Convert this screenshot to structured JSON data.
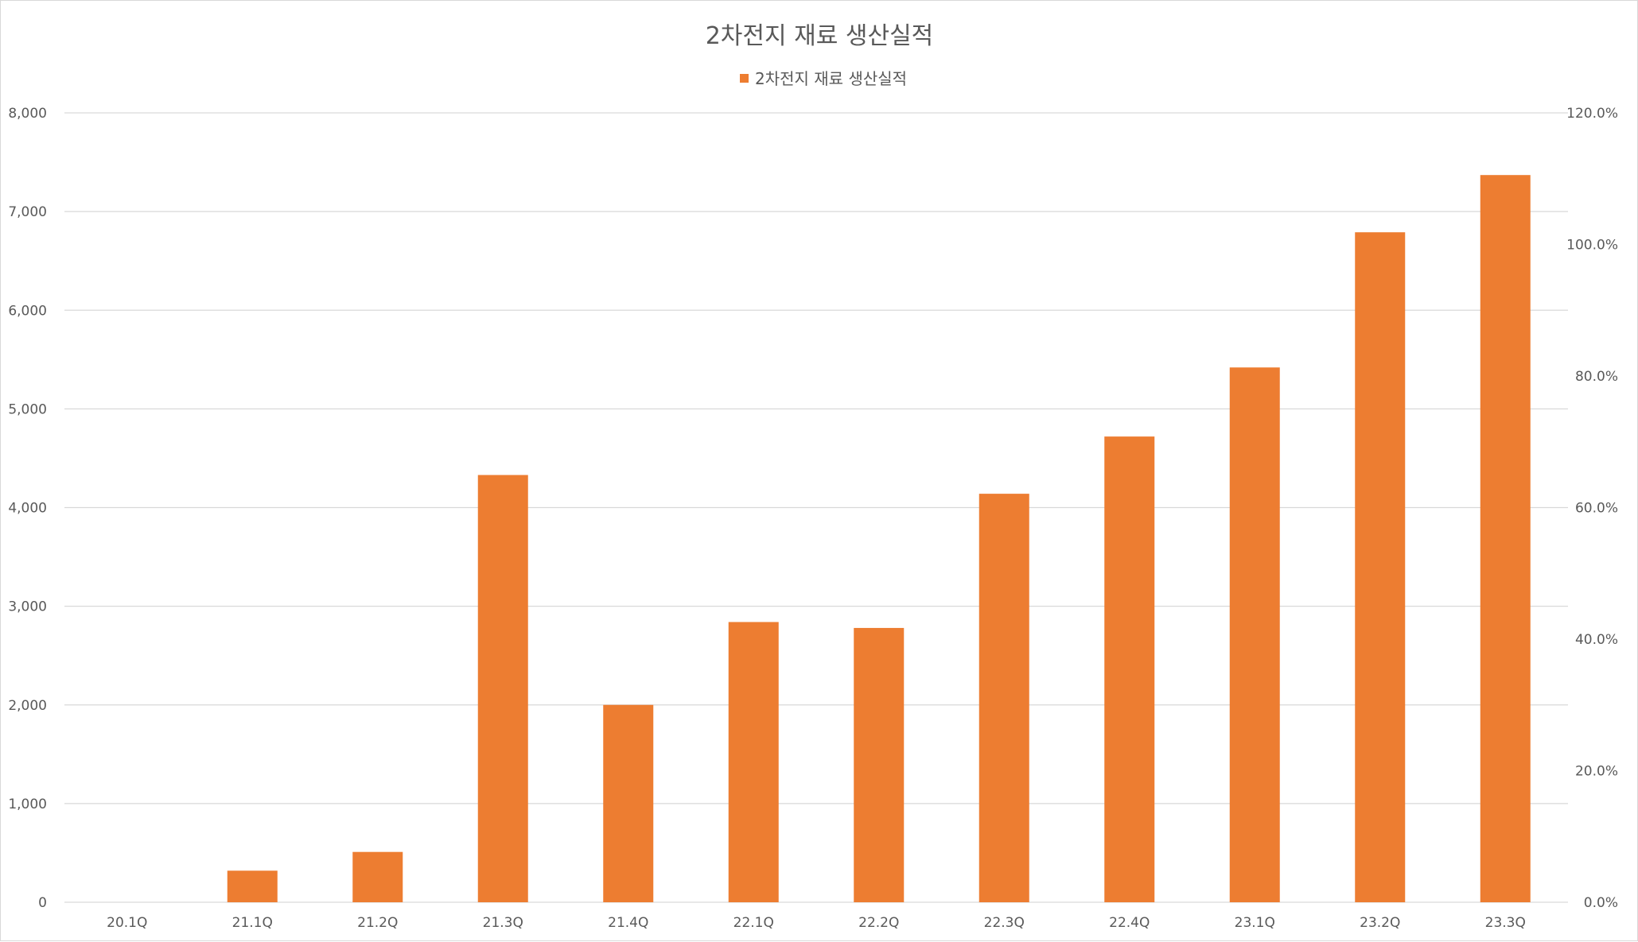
{
  "chart_data": {
    "type": "bar",
    "title": "2차전지 재료 생산실적",
    "legend": {
      "position": "top",
      "entries": [
        "2차전지 재료 생산실적"
      ]
    },
    "categories": [
      "20.1Q",
      "21.1Q",
      "21.2Q",
      "21.3Q",
      "21.4Q",
      "22.1Q",
      "22.2Q",
      "22.3Q",
      "22.4Q",
      "23.1Q",
      "23.2Q",
      "23.3Q"
    ],
    "series": [
      {
        "name": "2차전지 재료 생산실적",
        "color": "#ED7D31",
        "values": [
          0,
          320,
          510,
          4330,
          2000,
          2840,
          2780,
          4140,
          4720,
          5420,
          6790,
          7370
        ]
      }
    ],
    "ylim": [
      0,
      8000
    ],
    "yticks": [
      0,
      1000,
      2000,
      3000,
      4000,
      5000,
      6000,
      7000,
      8000
    ],
    "ytick_labels": [
      "0",
      "1,000",
      "2,000",
      "3,000",
      "4,000",
      "5,000",
      "6,000",
      "7,000",
      "8,000"
    ],
    "y2lim": [
      0,
      1.2
    ],
    "y2ticks": [
      0,
      0.2,
      0.4,
      0.6,
      0.8,
      1.0,
      1.2
    ],
    "y2tick_labels": [
      "0.0%",
      "20.0%",
      "40.0%",
      "60.0%",
      "80.0%",
      "100.0%",
      "120.0%"
    ],
    "grid": true,
    "xlabel": "",
    "ylabel": ""
  }
}
